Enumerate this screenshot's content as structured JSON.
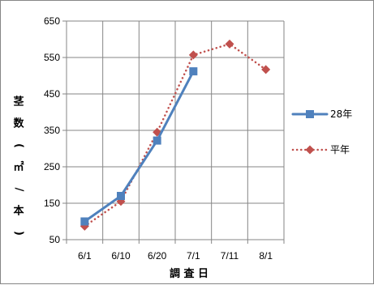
{
  "chart_data": {
    "type": "line",
    "categories": [
      "6/1",
      "6/10",
      "6/20",
      "7/1",
      "7/11",
      "8/1"
    ],
    "series": [
      {
        "name": "28年",
        "values": [
          100,
          170,
          322,
          512,
          null,
          null
        ],
        "color": "#4f81bd",
        "marker": "square",
        "line_style": "solid"
      },
      {
        "name": "平年",
        "values": [
          87,
          155,
          345,
          557,
          587,
          517
        ],
        "color": "#c0504d",
        "marker": "diamond",
        "line_style": "dotted"
      }
    ],
    "xlabel": "調 査 日",
    "ylabel_chars": [
      "茎",
      "数",
      "(",
      "㎡",
      "/",
      "本",
      ")"
    ],
    "ylim": [
      50,
      650
    ],
    "yticks": [
      50,
      150,
      250,
      350,
      450,
      550,
      650
    ],
    "grid": true,
    "legend": "right"
  }
}
